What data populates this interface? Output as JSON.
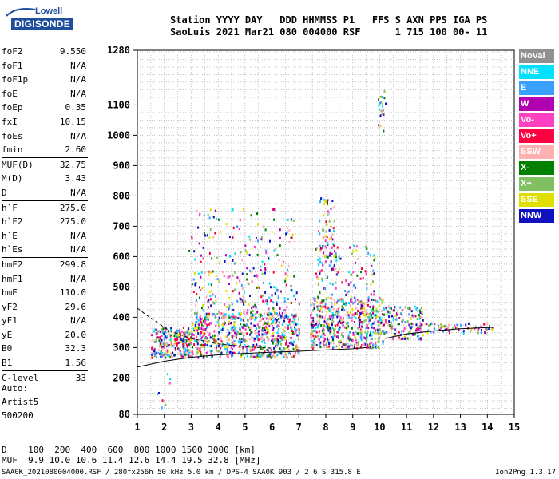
{
  "logo": {
    "line1": "Lowell",
    "line2": "DIGISONDE"
  },
  "header": {
    "line1": "Station YYYY DAY   DDD HHMMSS P1   FFS S AXN PPS IGA PS",
    "line2": "SaoLuis 2021 Mar21 080 004000 RSF      1 715 100 00- 11"
  },
  "params": [
    {
      "label": "foF2",
      "value": "9.550"
    },
    {
      "label": "foF1",
      "value": "N/A"
    },
    {
      "label": "foF1p",
      "value": "N/A"
    },
    {
      "label": "foE",
      "value": "N/A"
    },
    {
      "label": "foEp",
      "value": "0.35"
    },
    {
      "label": "fxI",
      "value": "10.15"
    },
    {
      "label": "foEs",
      "value": "N/A"
    },
    {
      "label": "fmin",
      "value": "2.60"
    },
    {
      "label": "MUF(D)",
      "value": "32.75"
    },
    {
      "label": "M(D)",
      "value": "3.43"
    },
    {
      "label": "D",
      "value": "N/A"
    },
    {
      "label": "h`F",
      "value": "275.0"
    },
    {
      "label": "h`F2",
      "value": "275.0"
    },
    {
      "label": "h`E",
      "value": "N/A"
    },
    {
      "label": "h`Es",
      "value": "N/A"
    },
    {
      "label": "hmF2",
      "value": "299.8"
    },
    {
      "label": "hmF1",
      "value": "N/A"
    },
    {
      "label": "hmE",
      "value": "110.0"
    },
    {
      "label": "yF2",
      "value": "29.6"
    },
    {
      "label": "yF1",
      "value": "N/A"
    },
    {
      "label": "yE",
      "value": "20.0"
    },
    {
      "label": "B0",
      "value": "32.3"
    },
    {
      "label": "B1",
      "value": "1.56"
    },
    {
      "label": "C-level",
      "value": "33"
    }
  ],
  "auto": {
    "line1": "Auto:",
    "line2": "Artist5",
    "line3": "500200"
  },
  "legend": [
    {
      "label": "NoVal",
      "color": "#909090"
    },
    {
      "label": "NNE",
      "color": "#00e0ff"
    },
    {
      "label": "E",
      "color": "#3aa0ff"
    },
    {
      "label": "W",
      "color": "#b000b0"
    },
    {
      "label": "Vo-",
      "color": "#ff40c0"
    },
    {
      "label": "Vo+",
      "color": "#ff0040"
    },
    {
      "label": "SSW",
      "color": "#ffb0b0"
    },
    {
      "label": "X-",
      "color": "#008000"
    },
    {
      "label": "X+",
      "color": "#80c060"
    },
    {
      "label": "SSE",
      "color": "#e0e000"
    },
    {
      "label": "NNW",
      "color": "#1010c0"
    }
  ],
  "chart_data": {
    "type": "scatter",
    "xlim": [
      1,
      15
    ],
    "ylim": [
      80,
      1280
    ],
    "x_ticks": [
      "1",
      "2",
      "3",
      "4",
      "5",
      "6",
      "7",
      "8",
      "9",
      "10",
      "11",
      "12",
      "13",
      "14",
      "15"
    ],
    "y_ticks": [
      {
        "value": 1280,
        "label": "1280"
      },
      {
        "value": 1100,
        "label": "1100"
      },
      {
        "value": 1000,
        "label": "1000"
      },
      {
        "value": 900,
        "label": "900"
      },
      {
        "value": 800,
        "label": "800"
      },
      {
        "value": 700,
        "label": "700"
      },
      {
        "value": 600,
        "label": "600"
      },
      {
        "value": 500,
        "label": "500"
      },
      {
        "value": 400,
        "label": "400"
      },
      {
        "value": 300,
        "label": "300"
      },
      {
        "value": 200,
        "label": "200"
      },
      {
        "value": 80,
        "label": "80"
      }
    ],
    "grid": true,
    "trace_curves": [
      {
        "points": [
          [
            1,
            236
          ],
          [
            2,
            255
          ],
          [
            3,
            268
          ],
          [
            4,
            276
          ],
          [
            5,
            281
          ],
          [
            6,
            285
          ],
          [
            7,
            288
          ],
          [
            8,
            292
          ],
          [
            9,
            296
          ],
          [
            9.5,
            300
          ]
        ]
      },
      {
        "points": [
          [
            10.2,
            330
          ],
          [
            11,
            345
          ],
          [
            12,
            355
          ],
          [
            13,
            362
          ],
          [
            14,
            366
          ],
          [
            14.2,
            367
          ]
        ]
      },
      {
        "points": [
          [
            1,
            430
          ],
          [
            1.3,
            410
          ],
          [
            1.7,
            385
          ],
          [
            2.2,
            355
          ],
          [
            3,
            330
          ],
          [
            4,
            312
          ],
          [
            5,
            303
          ],
          [
            6,
            298
          ]
        ]
      }
    ],
    "echo_clusters": [
      {
        "x": [
          1.5,
          3.0
        ],
        "y": [
          270,
          370
        ],
        "count": 260
      },
      {
        "x": [
          3.0,
          7.0
        ],
        "y": [
          270,
          420
        ],
        "count": 700
      },
      {
        "x": [
          3.0,
          7.0
        ],
        "y": [
          420,
          560
        ],
        "count": 160
      },
      {
        "x": [
          2.8,
          6.8
        ],
        "y": [
          560,
          760
        ],
        "count": 110
      },
      {
        "x": [
          7.4,
          10.1
        ],
        "y": [
          300,
          470
        ],
        "count": 520
      },
      {
        "x": [
          7.6,
          9.8
        ],
        "y": [
          470,
          640
        ],
        "count": 110
      },
      {
        "x": [
          7.7,
          8.3
        ],
        "y": [
          600,
          800
        ],
        "count": 60
      },
      {
        "x": [
          10.1,
          11.6
        ],
        "y": [
          330,
          440
        ],
        "count": 150
      },
      {
        "x": [
          11.6,
          14.2
        ],
        "y": [
          350,
          385
        ],
        "count": 70
      },
      {
        "x": [
          9.9,
          10.2
        ],
        "y": [
          1000,
          1150
        ],
        "count": 20
      },
      {
        "x": [
          1.5,
          2.2
        ],
        "y": [
          100,
          260
        ],
        "count": 8
      }
    ]
  },
  "distance_table": {
    "row1": "D    100  200  400  600  800 1000 1500 3000 [km]",
    "row2": "MUF  9.9 10.0 10.6 11.4 12.6 14.4 19.5 32.8 [MHz]"
  },
  "footer": "SAA0K_2021080004000.RSF / 280fx256h 50 kHz 5.0 km / DPS-4 SAA0K 903 / 2.6 S 315.8 E",
  "version": "Ion2Png 1.3.17"
}
